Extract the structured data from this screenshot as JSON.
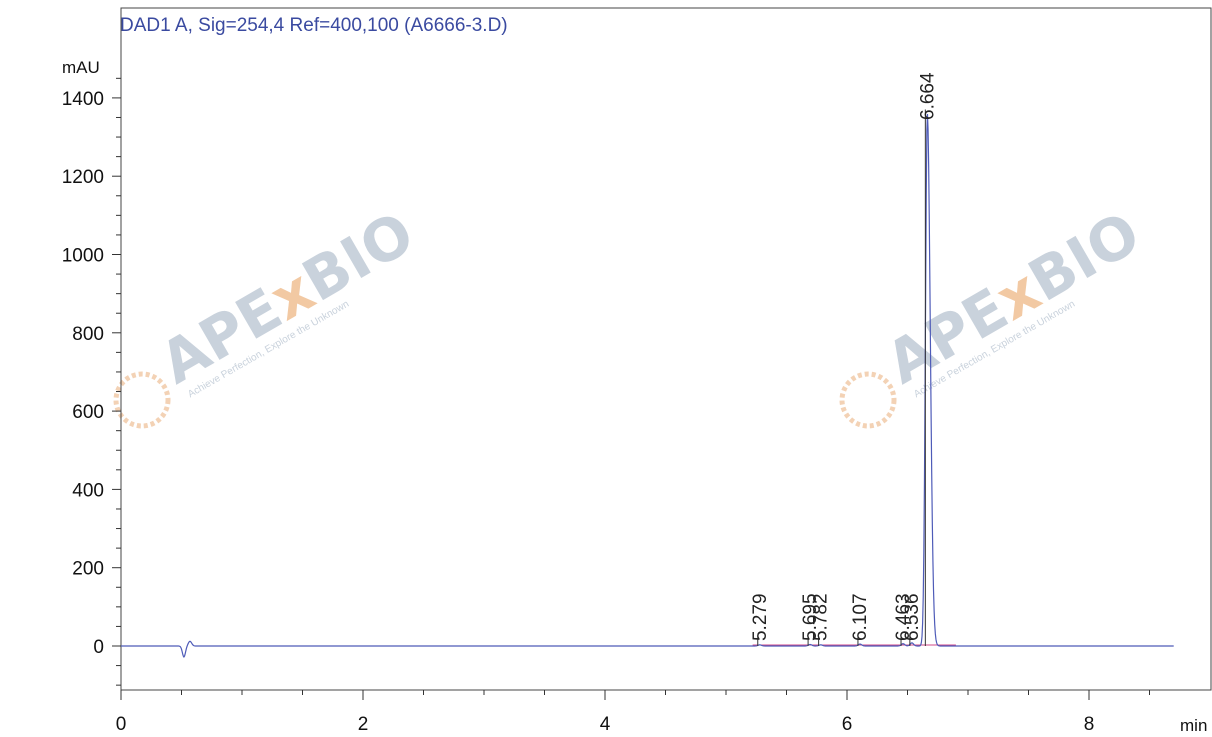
{
  "chart_data": {
    "type": "line",
    "title": "DAD1 A, Sig=254,4 Ref=400,100 (A6666-3.D)",
    "ylabel": "mAU",
    "xlabel": "min",
    "xlim": [
      0,
      9.0
    ],
    "ylim": [
      -110,
      1500
    ],
    "x_ticks": [
      0,
      2,
      4,
      6,
      8
    ],
    "y_ticks": [
      0,
      200,
      400,
      600,
      800,
      1000,
      1200,
      1400
    ],
    "grid": false,
    "peaks": [
      {
        "label": "5.279",
        "rt": 5.279,
        "height": 3
      },
      {
        "label": "5.695",
        "rt": 5.695,
        "height": 4
      },
      {
        "label": "5.782",
        "rt": 5.782,
        "height": 3
      },
      {
        "label": "6.107",
        "rt": 6.107,
        "height": 5
      },
      {
        "label": "6.463",
        "rt": 6.463,
        "height": 6
      },
      {
        "label": "6.536",
        "rt": 6.536,
        "height": 8
      },
      {
        "label": "6.664",
        "rt": 6.664,
        "height": 1360
      }
    ],
    "baseline_x_end": 8.7
  },
  "watermark": {
    "brand_left": "APE",
    "brand_x": "x",
    "brand_right": "BIO",
    "tagline": "Achieve Perfection, Explore the Unknown"
  }
}
